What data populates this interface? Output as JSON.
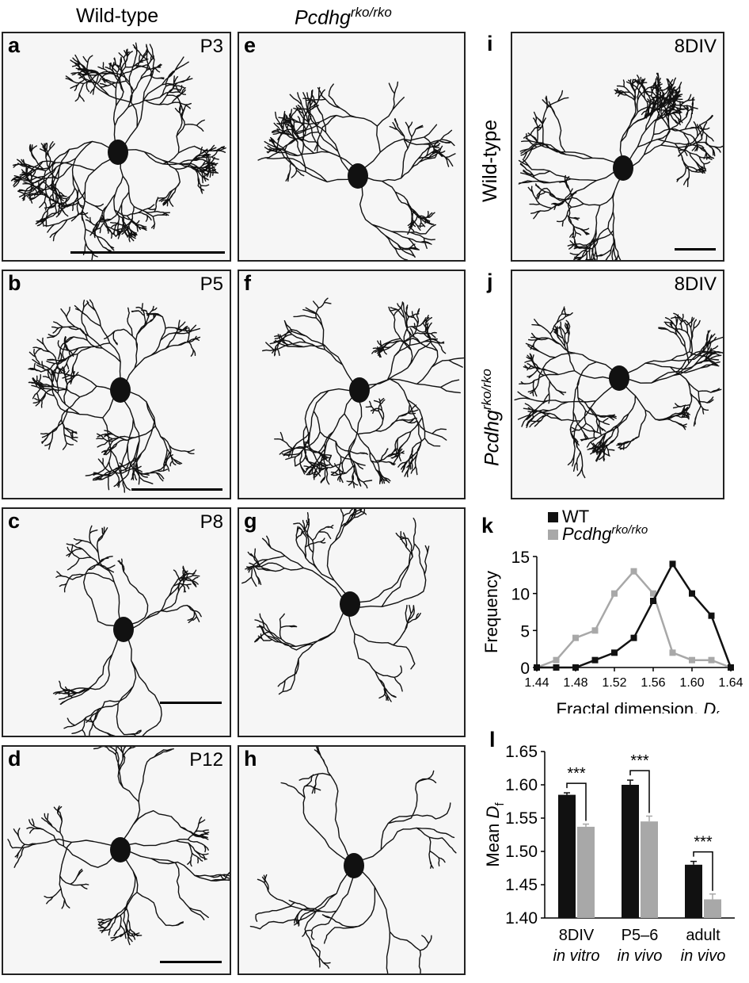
{
  "columns": {
    "wt_title": "Wild-type",
    "ko_title_main": "Pcdhg",
    "ko_title_sup": "rko/rko"
  },
  "panels": [
    {
      "label": "a",
      "age": "P3",
      "density": 1.0
    },
    {
      "label": "b",
      "age": "P5",
      "density": 0.85
    },
    {
      "label": "c",
      "age": "P8",
      "density": 0.65
    },
    {
      "label": "d",
      "age": "P12",
      "density": 0.6
    },
    {
      "label": "e",
      "age": "",
      "density": 0.8
    },
    {
      "label": "f",
      "age": "",
      "density": 0.9
    },
    {
      "label": "g",
      "age": "",
      "density": 0.55
    },
    {
      "label": "h",
      "age": "",
      "density": 0.5
    },
    {
      "label": "i",
      "age": "8DIV",
      "density": 0.95
    },
    {
      "label": "j",
      "age": "8DIV",
      "density": 0.9
    }
  ],
  "row_labels": {
    "i": "Wild-type",
    "j_main": "Pcdhg",
    "j_sup": "rko/rko"
  },
  "chart_data": [
    {
      "panel": "k",
      "type": "line",
      "legend": [
        {
          "main": "WT",
          "sup": "",
          "color": "#111111"
        },
        {
          "main": "Pcdhg",
          "sup": "rko/rko",
          "color": "#a8a8a8"
        }
      ],
      "x": [
        1.44,
        1.46,
        1.48,
        1.5,
        1.52,
        1.54,
        1.56,
        1.58,
        1.6,
        1.62,
        1.64
      ],
      "series": [
        {
          "name": "WT",
          "color": "#111111",
          "values": [
            0,
            0,
            0,
            1,
            2,
            4,
            9,
            14,
            10,
            7,
            0
          ]
        },
        {
          "name": "Pcdhg rko/rko",
          "color": "#a8a8a8",
          "values": [
            0,
            1,
            4,
            5,
            10,
            13,
            10,
            2,
            1,
            1,
            0
          ]
        }
      ],
      "xlabel": "Fractal dimension, ",
      "xlabel_var": "D",
      "xlabel_sub": "f",
      "ylabel": "Frequency",
      "xticks": [
        "1.44",
        "1.48",
        "1.52",
        "1.56",
        "1.60",
        "1.64"
      ],
      "yticks": [
        "0",
        "5",
        "10",
        "15"
      ],
      "xlim": [
        1.44,
        1.64
      ],
      "ylim": [
        0,
        15
      ]
    },
    {
      "panel": "l",
      "type": "bar",
      "categories": [
        {
          "line1": "8DIV",
          "line2": "in vitro"
        },
        {
          "line1": "P5–6",
          "line2": "in vivo"
        },
        {
          "line1": "adult",
          "line2": "in vivo"
        }
      ],
      "series": [
        {
          "name": "WT",
          "color": "#111111",
          "values": [
            1.585,
            1.6,
            1.48
          ],
          "errors": [
            0.003,
            0.007,
            0.005
          ]
        },
        {
          "name": "Pcdhg rko/rko",
          "color": "#a8a8a8",
          "values": [
            1.537,
            1.545,
            1.428
          ],
          "errors": [
            0.004,
            0.008,
            0.008
          ]
        }
      ],
      "significance": [
        "***",
        "***",
        "***"
      ],
      "ylabel": "Mean ",
      "ylabel_var": "D",
      "ylabel_sub": "f",
      "yticks": [
        "1.40",
        "1.45",
        "1.50",
        "1.55",
        "1.60",
        "1.65"
      ],
      "ylim": [
        1.4,
        1.65
      ]
    }
  ]
}
